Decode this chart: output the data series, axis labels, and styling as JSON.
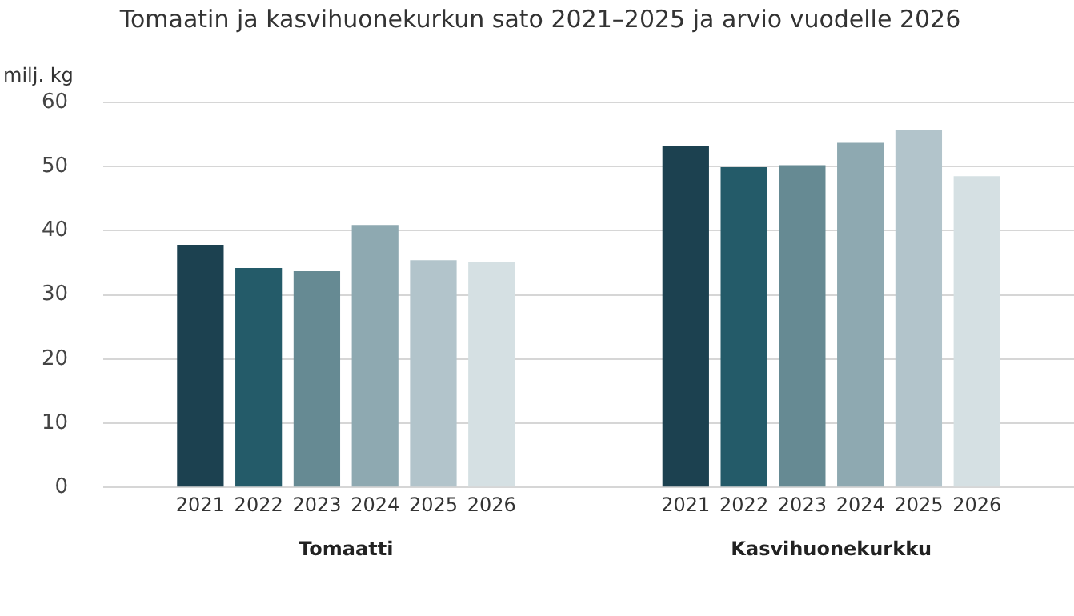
{
  "chart_data": {
    "type": "bar",
    "title": "Tomaatin ja kasvihuonekurkun sato 2021–2025 ja arvio vuodelle 2026",
    "ylabel": "milj. kg",
    "categories": [
      "Tomaatti",
      "Kasvihuonekurkku"
    ],
    "series": [
      {
        "name": "2021",
        "color": "#1c4150",
        "values": [
          37.8,
          53.2
        ]
      },
      {
        "name": "2022",
        "color": "#245b69",
        "values": [
          34.2,
          49.9
        ]
      },
      {
        "name": "2023",
        "color": "#668a93",
        "values": [
          33.7,
          50.2
        ]
      },
      {
        "name": "2024",
        "color": "#8ea9b1",
        "values": [
          40.9,
          53.7
        ]
      },
      {
        "name": "2025",
        "color": "#b2c4cb",
        "values": [
          35.4,
          55.7
        ]
      },
      {
        "name": "2026",
        "color": "#d5e0e3",
        "values": [
          35.2,
          48.5
        ]
      }
    ],
    "ylim": [
      0,
      60
    ],
    "yticks": [
      0,
      10,
      20,
      30,
      40,
      50,
      60
    ],
    "grid": "y",
    "legend": false
  }
}
